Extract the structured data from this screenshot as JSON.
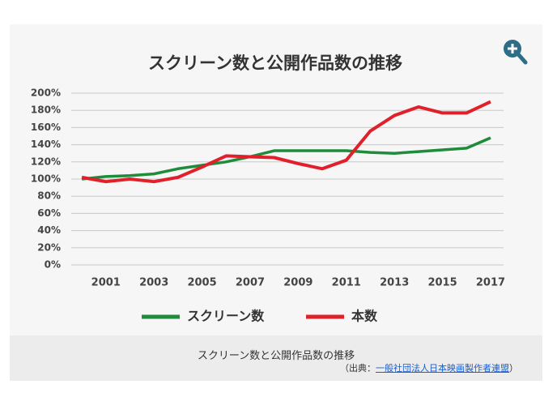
{
  "chart_data": {
    "type": "line",
    "title": "スクリーン数と公開作品数の推移",
    "x": [
      2000,
      2001,
      2002,
      2003,
      2004,
      2005,
      2006,
      2007,
      2008,
      2009,
      2010,
      2011,
      2012,
      2013,
      2014,
      2015,
      2016,
      2017
    ],
    "xlim": [
      1999.56,
      2017.54
    ],
    "xticks": [
      2001,
      2003,
      2005,
      2007,
      2009,
      2011,
      2013,
      2015,
      2017
    ],
    "ylim": [
      0,
      200
    ],
    "yticks": [
      {
        "value": 0,
        "label": "0%"
      },
      {
        "value": 20,
        "label": "20%"
      },
      {
        "value": 40,
        "label": "40%"
      },
      {
        "value": 60,
        "label": "60%"
      },
      {
        "value": 80,
        "label": "80%"
      },
      {
        "value": 100,
        "label": "100%"
      },
      {
        "value": 120,
        "label": "120%"
      },
      {
        "value": 140,
        "label": "140%"
      },
      {
        "value": 160,
        "label": "160%"
      },
      {
        "value": 180,
        "label": "180%"
      },
      {
        "value": 200,
        "label": "200%"
      }
    ],
    "grid": true,
    "series": [
      {
        "name": "スクリーン数",
        "color": "#1e8c3a",
        "values": [
          100,
          103,
          104,
          106,
          112,
          116,
          120,
          126,
          133,
          133,
          133,
          133,
          131,
          130,
          132,
          134,
          136,
          148
        ]
      },
      {
        "name": "本数",
        "color": "#e0212b",
        "values": [
          102,
          97,
          100,
          97,
          102,
          114,
          127,
          126,
          125,
          118,
          112,
          122,
          156,
          174,
          184,
          177,
          177,
          190
        ]
      }
    ]
  },
  "caption": {
    "title": "スクリーン数と公開作品数の推移",
    "source_prefix": "（出典：",
    "source_link": "一般社団法人日本映画製作者連盟",
    "source_suffix": "）"
  }
}
